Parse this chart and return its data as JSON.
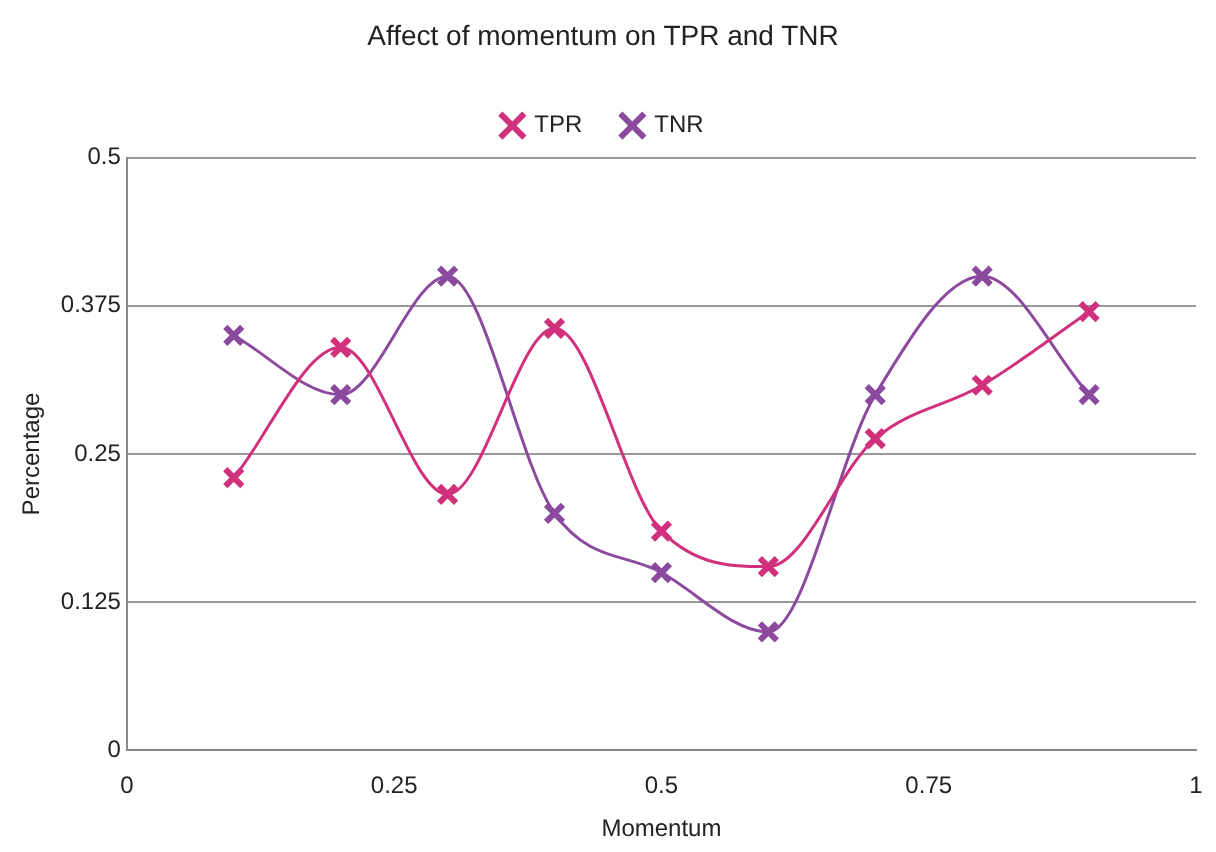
{
  "chart_data": {
    "type": "line",
    "title": "Affect of momentum on TPR and TNR",
    "xlabel": "Momentum",
    "ylabel": "Percentage",
    "x": [
      0.1,
      0.2,
      0.3,
      0.4,
      0.5,
      0.6,
      0.7,
      0.8,
      0.9
    ],
    "series": [
      {
        "name": "TPR",
        "color": "#d1307c",
        "values": [
          0.23,
          0.34,
          0.216,
          0.356,
          0.185,
          0.155,
          0.263,
          0.308,
          0.37
        ]
      },
      {
        "name": "TNR",
        "color": "#8b4a9e",
        "values": [
          0.35,
          0.3,
          0.4,
          0.2,
          0.15,
          0.1,
          0.3,
          0.4,
          0.3
        ]
      }
    ],
    "xlim": [
      0,
      1
    ],
    "xticks": [
      0,
      0.25,
      0.5,
      0.75,
      1
    ],
    "ylim": [
      0,
      0.5
    ],
    "yticks": [
      0,
      0.125,
      0.25,
      0.375,
      0.5
    ],
    "grid": "y",
    "legend": "top",
    "marker": "cross",
    "line_style": "solid"
  }
}
